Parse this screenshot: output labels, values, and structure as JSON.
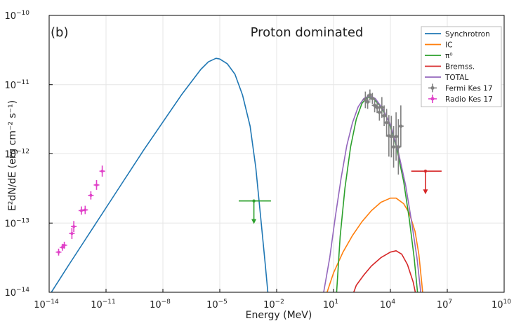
{
  "chart_data": {
    "type": "line",
    "panel_label": "(b)",
    "title": "Proton dominated",
    "xlabel": "Energy (MeV)",
    "ylabel": "E²dN/dE (erg cm⁻² s⁻¹)",
    "xscale": "log",
    "yscale": "log",
    "xlim": [
      1e-14,
      10000000000.0
    ],
    "ylim": [
      1e-14,
      1e-10
    ],
    "x_ticks": [
      {
        "exp": -14,
        "label": "10",
        "sup": "−14"
      },
      {
        "exp": -11,
        "label": "10",
        "sup": "−11"
      },
      {
        "exp": -8,
        "label": "10",
        "sup": "−8"
      },
      {
        "exp": -5,
        "label": "10",
        "sup": "−5"
      },
      {
        "exp": -2,
        "label": "10",
        "sup": "−2"
      },
      {
        "exp": 1,
        "label": "10",
        "sup": "1"
      },
      {
        "exp": 4,
        "label": "10",
        "sup": "4"
      },
      {
        "exp": 7,
        "label": "10",
        "sup": "7"
      },
      {
        "exp": 10,
        "label": "10",
        "sup": "10"
      }
    ],
    "y_ticks": [
      {
        "exp": -14,
        "label": "10",
        "sup": "−14"
      },
      {
        "exp": -13,
        "label": "10",
        "sup": "−13"
      },
      {
        "exp": -12,
        "label": "10",
        "sup": "−12"
      },
      {
        "exp": -11,
        "label": "10",
        "sup": "−11"
      },
      {
        "exp": -10,
        "label": "10",
        "sup": "−10"
      }
    ],
    "grid": true,
    "legend_position": "top-right",
    "series": [
      {
        "name": "Synchrotron",
        "color": "#1f77b4",
        "points": [
          [
            -14,
            -14.05
          ],
          [
            -13,
            -13.62
          ],
          [
            -12,
            -13.2
          ],
          [
            -11,
            -12.78
          ],
          [
            -10,
            -12.36
          ],
          [
            -9,
            -11.94
          ],
          [
            -8,
            -11.54
          ],
          [
            -7,
            -11.14
          ],
          [
            -6,
            -10.78
          ],
          [
            -5.6,
            -10.67
          ],
          [
            -5.2,
            -10.62
          ],
          [
            -5.0,
            -10.63
          ],
          [
            -4.6,
            -10.7
          ],
          [
            -4.2,
            -10.85
          ],
          [
            -3.8,
            -11.15
          ],
          [
            -3.4,
            -11.6
          ],
          [
            -3.1,
            -12.2
          ],
          [
            -2.85,
            -12.9
          ],
          [
            -2.6,
            -13.6
          ],
          [
            -2.45,
            -14.05
          ]
        ]
      },
      {
        "name": "IC",
        "color": "#ff7f0e",
        "points": [
          [
            0.6,
            -14.05
          ],
          [
            1.0,
            -13.72
          ],
          [
            1.5,
            -13.42
          ],
          [
            2.0,
            -13.18
          ],
          [
            2.5,
            -12.98
          ],
          [
            3.0,
            -12.82
          ],
          [
            3.5,
            -12.7
          ],
          [
            4.0,
            -12.64
          ],
          [
            4.3,
            -12.64
          ],
          [
            4.7,
            -12.72
          ],
          [
            5.0,
            -12.86
          ],
          [
            5.3,
            -13.12
          ],
          [
            5.5,
            -13.45
          ],
          [
            5.65,
            -13.85
          ],
          [
            5.72,
            -14.05
          ]
        ]
      },
      {
        "name": "π⁰",
        "color": "#2ca02c",
        "points": [
          [
            1.15,
            -14.05
          ],
          [
            1.35,
            -13.2
          ],
          [
            1.6,
            -12.5
          ],
          [
            1.9,
            -11.9
          ],
          [
            2.2,
            -11.5
          ],
          [
            2.5,
            -11.27
          ],
          [
            2.8,
            -11.18
          ],
          [
            3.1,
            -11.2
          ],
          [
            3.5,
            -11.32
          ],
          [
            3.9,
            -11.52
          ],
          [
            4.3,
            -11.88
          ],
          [
            4.7,
            -12.4
          ],
          [
            5.0,
            -12.95
          ],
          [
            5.25,
            -13.5
          ],
          [
            5.45,
            -14.05
          ]
        ]
      },
      {
        "name": "Bremss.",
        "color": "#d62728",
        "points": [
          [
            2.0,
            -14.05
          ],
          [
            2.2,
            -13.9
          ],
          [
            2.6,
            -13.75
          ],
          [
            3.0,
            -13.62
          ],
          [
            3.5,
            -13.5
          ],
          [
            4.0,
            -13.42
          ],
          [
            4.3,
            -13.4
          ],
          [
            4.6,
            -13.45
          ],
          [
            4.9,
            -13.6
          ],
          [
            5.2,
            -13.85
          ],
          [
            5.35,
            -14.05
          ]
        ]
      },
      {
        "name": "TOTAL",
        "color": "#9467bd",
        "points": [
          [
            0.45,
            -14.05
          ],
          [
            0.8,
            -13.5
          ],
          [
            1.1,
            -12.9
          ],
          [
            1.4,
            -12.35
          ],
          [
            1.7,
            -11.88
          ],
          [
            2.0,
            -11.55
          ],
          [
            2.3,
            -11.32
          ],
          [
            2.6,
            -11.2
          ],
          [
            2.9,
            -11.16
          ],
          [
            3.2,
            -11.2
          ],
          [
            3.6,
            -11.35
          ],
          [
            4.0,
            -11.58
          ],
          [
            4.4,
            -11.95
          ],
          [
            4.8,
            -12.45
          ],
          [
            5.1,
            -12.95
          ],
          [
            5.4,
            -13.5
          ],
          [
            5.62,
            -14.05
          ]
        ]
      }
    ],
    "fermi_points": {
      "name": "Fermi Kes 17",
      "color": "#808080",
      "points": [
        [
          2.68,
          -11.22,
          0.12
        ],
        [
          2.8,
          -11.25,
          0.1
        ],
        [
          2.92,
          -11.15,
          0.08
        ],
        [
          3.05,
          -11.2,
          0.08
        ],
        [
          3.17,
          -11.3,
          0.1
        ],
        [
          3.3,
          -11.33,
          0.08
        ],
        [
          3.42,
          -11.4,
          0.12
        ],
        [
          3.55,
          -11.33,
          0.15
        ],
        [
          3.67,
          -11.45,
          0.15
        ],
        [
          3.8,
          -11.55,
          0.2
        ],
        [
          3.92,
          -11.74,
          0.3
        ],
        [
          4.05,
          -11.75,
          0.3
        ],
        [
          4.17,
          -11.9,
          0.3
        ],
        [
          4.3,
          -11.75,
          0.35
        ],
        [
          4.42,
          -11.9,
          0.4
        ],
        [
          4.55,
          -11.6,
          0.3
        ]
      ]
    },
    "radio_points": {
      "name": "Radio Kes 17",
      "color": "#e040c8",
      "points": [
        [
          -13.5,
          -13.42,
          0.05
        ],
        [
          -13.3,
          -13.35,
          0.05
        ],
        [
          -13.2,
          -13.32,
          0.05
        ],
        [
          -12.8,
          -13.15,
          0.08
        ],
        [
          -12.7,
          -13.05,
          0.08
        ],
        [
          -12.3,
          -12.82,
          0.06
        ],
        [
          -12.1,
          -12.81,
          0.06
        ],
        [
          -11.8,
          -12.6,
          0.06
        ],
        [
          -11.5,
          -12.45,
          0.07
        ],
        [
          -11.2,
          -12.25,
          0.08
        ]
      ]
    },
    "upper_limits": [
      {
        "name": "green-limit",
        "color": "#2ca02c",
        "x": -3.2,
        "y": -12.68,
        "xmin": -4.0,
        "xmax": -2.3
      },
      {
        "name": "red-limit",
        "color": "#d62728",
        "x": 5.85,
        "y": -12.25,
        "xmin": 5.1,
        "xmax": 6.7
      }
    ]
  }
}
